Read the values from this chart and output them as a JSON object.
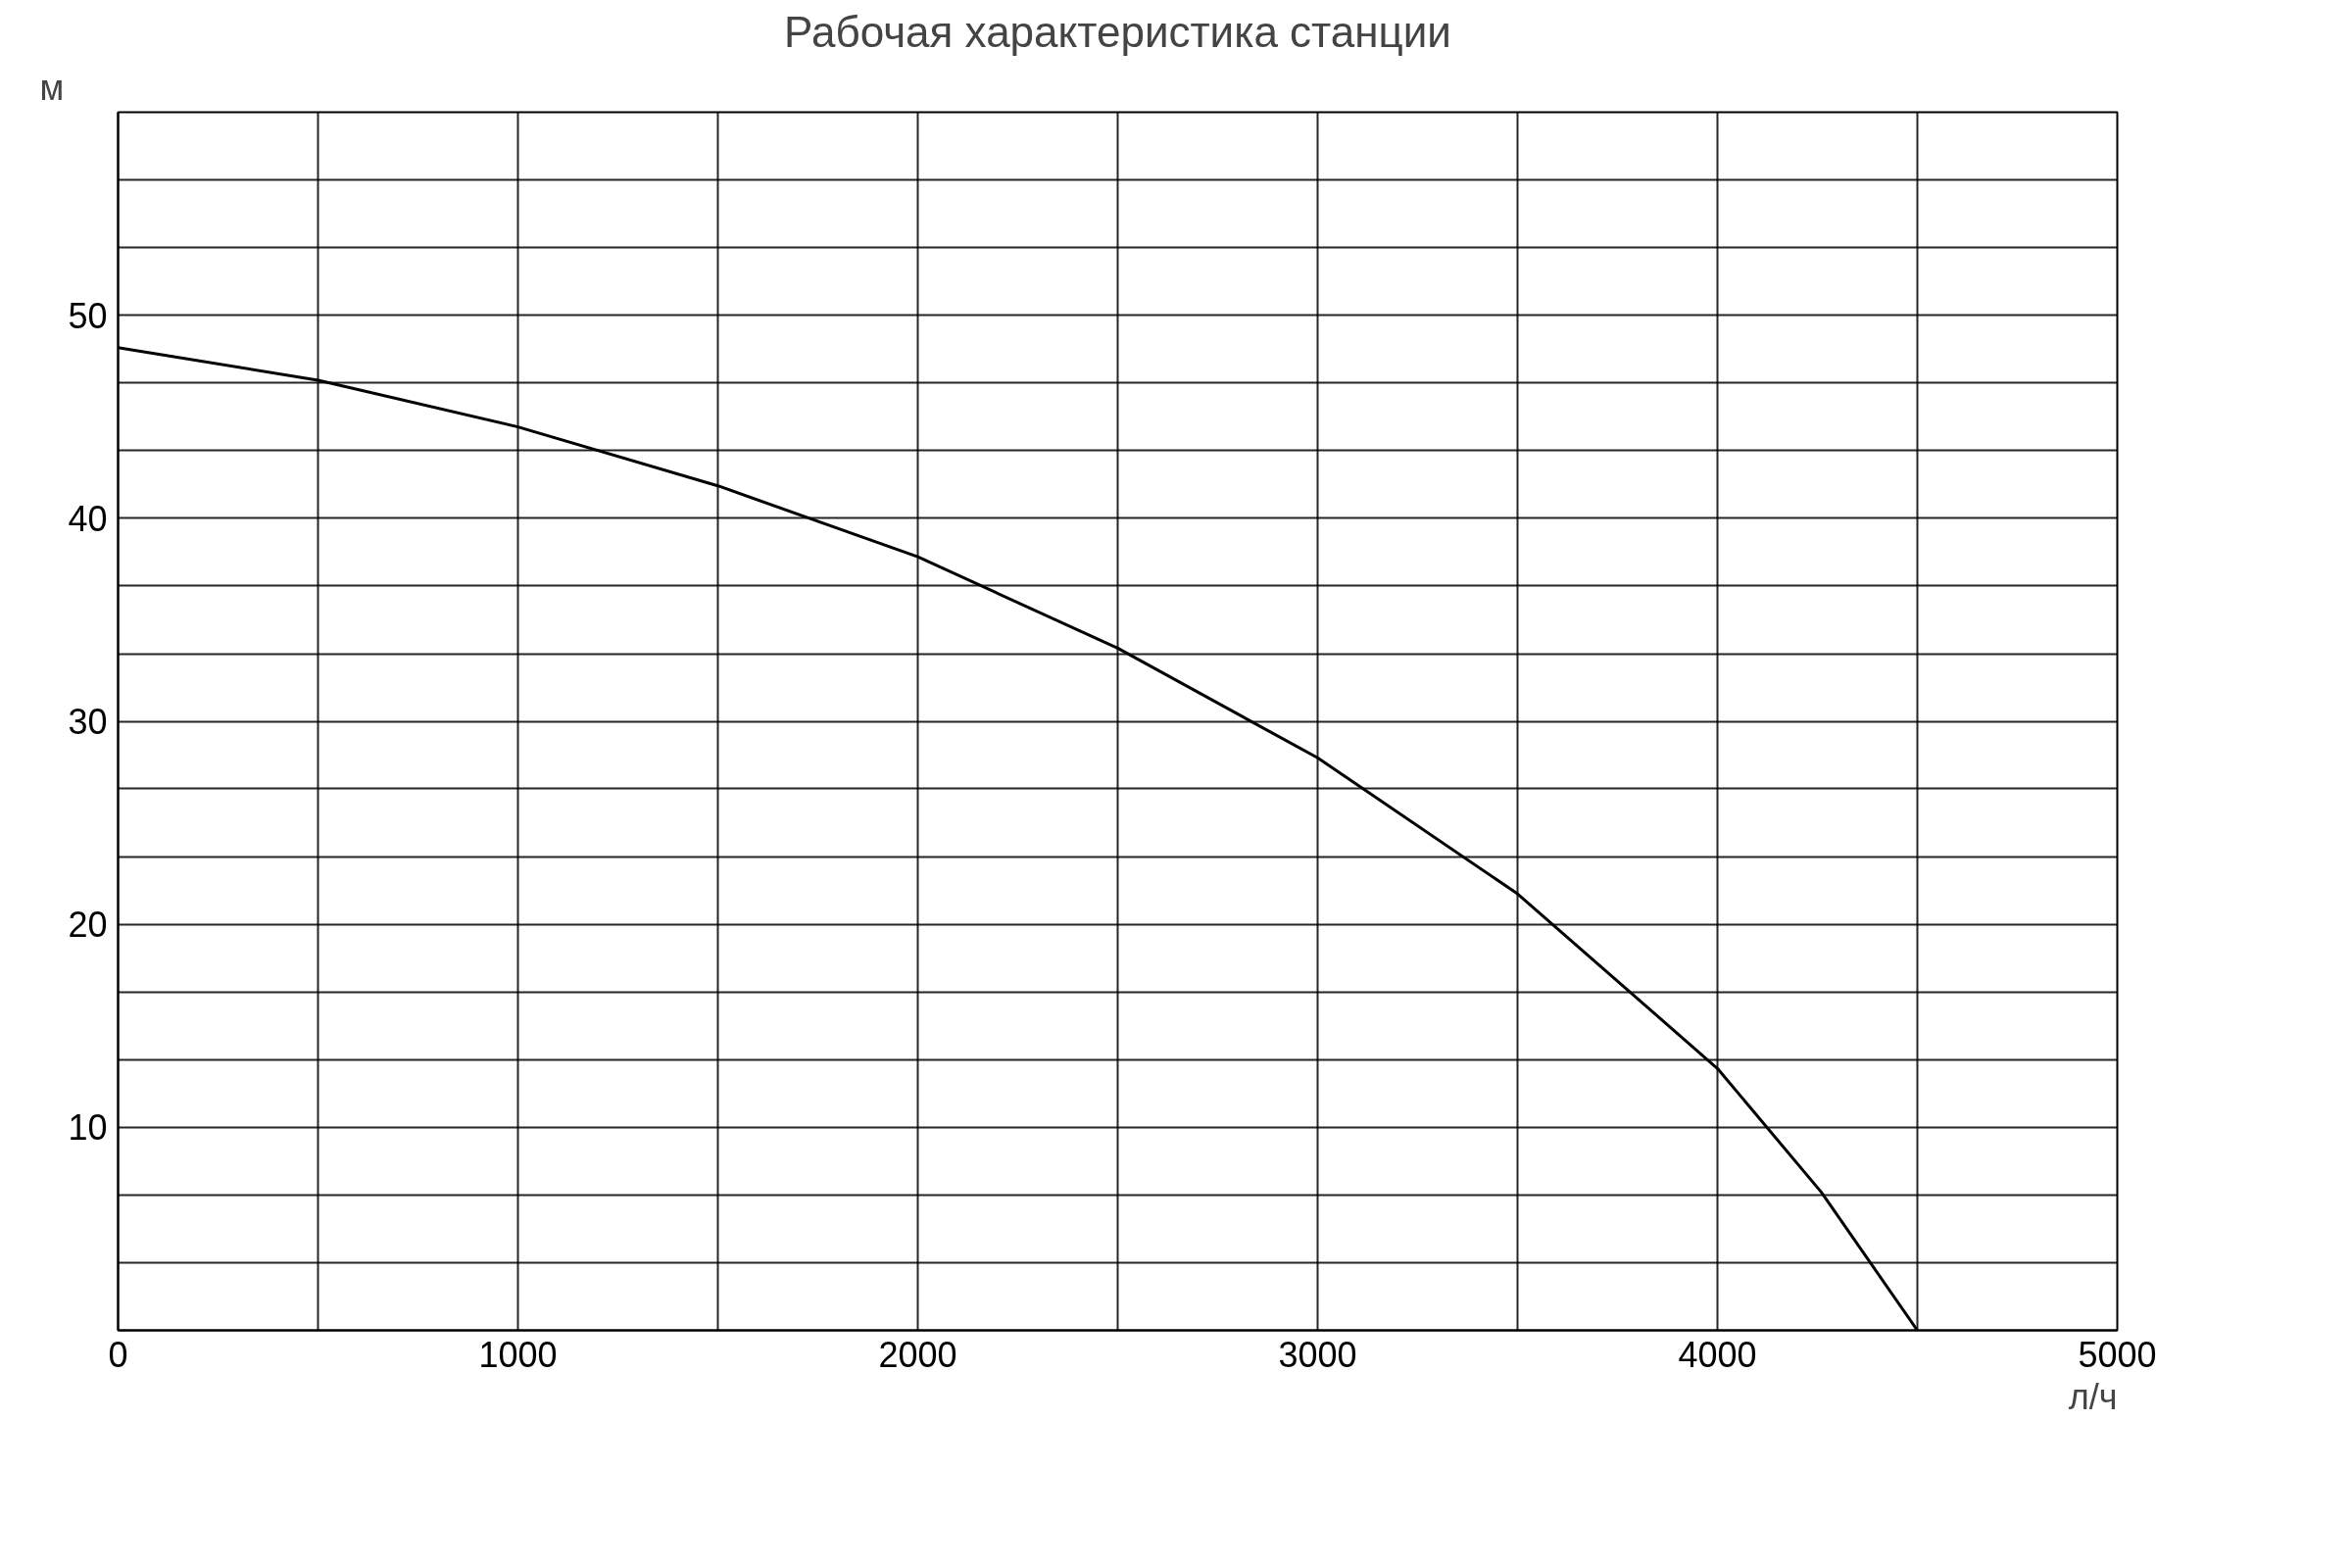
{
  "chart_data": {
    "type": "line",
    "title": "Рабочая характеристика станции",
    "xlabel": "л/ч",
    "ylabel": "м",
    "x": [
      0,
      500,
      1000,
      1500,
      2000,
      2500,
      3000,
      3500,
      4000,
      4260,
      4500
    ],
    "series": [
      {
        "color": "#000000",
        "values": [
          48.4,
          46.8,
          44.5,
          41.6,
          38.1,
          33.6,
          28.2,
          21.5,
          12.9,
          6.8,
          0
        ]
      }
    ],
    "xlim": [
      0,
      5000
    ],
    "xticks": [
      0,
      {
        "value": 500,
        "label": null
      },
      1000,
      {
        "value": 1500,
        "label": null
      },
      2000,
      {
        "value": 2500,
        "label": null
      },
      3000,
      {
        "value": 3500,
        "label": null
      },
      4000,
      {
        "value": 4500,
        "label": null
      },
      5000
    ],
    "ylim": [
      0,
      60
    ],
    "yticks": [
      {
        "value": 3.33,
        "label": null
      },
      {
        "value": 6.67,
        "label": null
      },
      10,
      {
        "value": 13.33,
        "label": null
      },
      {
        "value": 16.67,
        "label": null
      },
      20,
      {
        "value": 23.33,
        "label": null
      },
      {
        "value": 26.67,
        "label": null
      },
      30,
      {
        "value": 33.33,
        "label": null
      },
      {
        "value": 36.67,
        "label": null
      },
      40,
      {
        "value": 43.33,
        "label": null
      },
      {
        "value": 46.67,
        "label": null
      },
      50,
      {
        "value": 53.33,
        "label": null
      },
      {
        "value": 56.67,
        "label": null
      },
      {
        "value": 60,
        "label": null
      }
    ],
    "grid": true,
    "marker": "none",
    "line_style": "solid"
  }
}
